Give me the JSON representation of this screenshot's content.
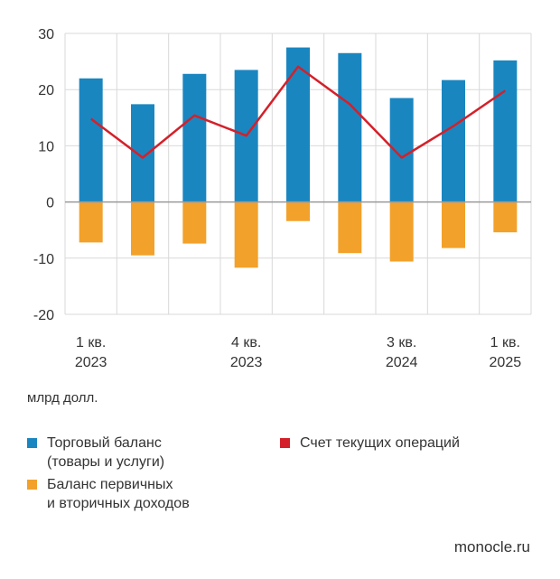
{
  "chart_data": {
    "type": "bar",
    "x": [
      "1 кв. 2023",
      "2 кв. 2023",
      "3 кв. 2023",
      "4 кв. 2023",
      "1 кв. 2024",
      "2 кв. 2024",
      "3 кв. 2024",
      "4 кв. 2024",
      "1 кв. 2025"
    ],
    "x_tick_labels": [
      {
        "index": 0,
        "line1": "1 кв.",
        "line2": "2023"
      },
      {
        "index": 3,
        "line1": "4 кв.",
        "line2": "2023"
      },
      {
        "index": 6,
        "line1": "3 кв.",
        "line2": "2024"
      },
      {
        "index": 8,
        "line1": "1 кв.",
        "line2": "2025"
      }
    ],
    "series": [
      {
        "name": "Торговый баланс\n(товары и услуги)",
        "type": "bar",
        "color": "#1a86c0",
        "values": [
          22.0,
          17.4,
          22.8,
          23.5,
          27.5,
          26.5,
          18.5,
          21.7,
          25.2
        ]
      },
      {
        "name": "Баланс первичных\nи вторичных доходов",
        "type": "bar",
        "color": "#f2a12a",
        "values": [
          -7.2,
          -9.5,
          -7.4,
          -11.7,
          -3.4,
          -9.1,
          -10.6,
          -8.2,
          -5.4
        ]
      },
      {
        "name": "Счет текущих операций",
        "type": "line",
        "color": "#d4202a",
        "values": [
          14.8,
          7.9,
          15.4,
          11.8,
          24.1,
          17.4,
          7.9,
          13.5,
          19.8
        ]
      }
    ],
    "y_ticks": [
      "30",
      "20",
      "10",
      "0",
      "-10",
      "-20"
    ],
    "ylim": [
      -20,
      30
    ],
    "ylabel": "млрд долл.",
    "grid": true,
    "legend_position": "bottom"
  },
  "unit_label": "млрд долл.",
  "source": "monocle.ru"
}
